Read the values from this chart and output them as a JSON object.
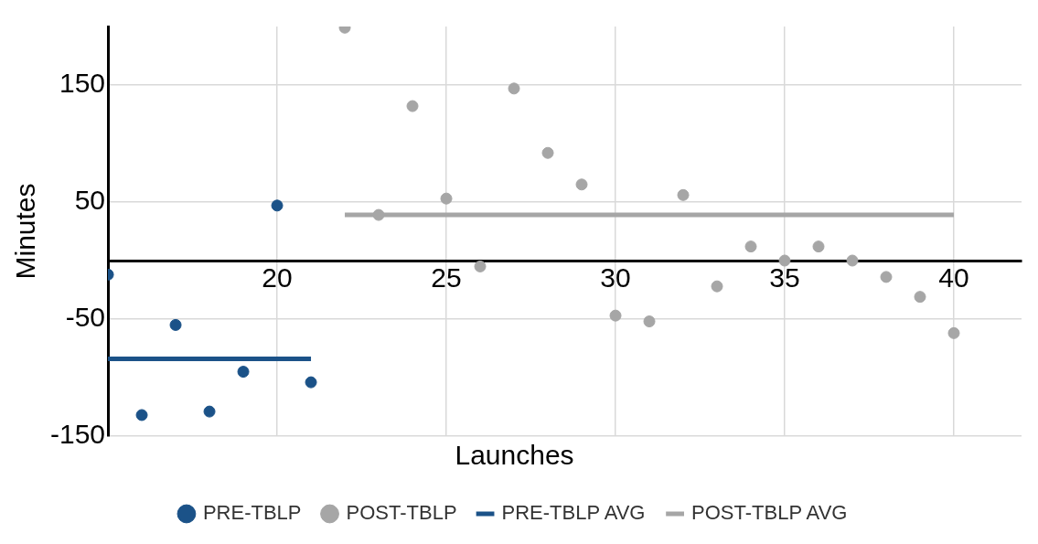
{
  "chart_data": {
    "type": "scatter",
    "xlabel": "Launches",
    "ylabel": "Minutes",
    "xlim": [
      15,
      42
    ],
    "xticks": [
      20,
      25,
      30,
      35,
      40
    ],
    "ylim": [
      -150,
      200
    ],
    "yticks": [
      -150,
      -50,
      50,
      150
    ],
    "grid": true,
    "legend": "bottom",
    "series": [
      {
        "name": "PRE-TBLP",
        "color": "#1b5288",
        "marker": "circle",
        "x": [
          15,
          16,
          17,
          18,
          19,
          20,
          21
        ],
        "values": [
          -12,
          -132,
          -55,
          -129,
          -95,
          47,
          -104
        ]
      },
      {
        "name": "POST-TBLP",
        "color": "#a6a6a6",
        "marker": "circle",
        "x": [
          22,
          23,
          24,
          25,
          26,
          27,
          28,
          29,
          30,
          31,
          32,
          33,
          34,
          35,
          36,
          37,
          38,
          39,
          40
        ],
        "values": [
          199,
          39,
          132,
          53,
          -5,
          147,
          92,
          65,
          -47,
          -52,
          56,
          -22,
          12,
          0,
          12,
          0,
          -14,
          -31,
          -62
        ]
      },
      {
        "name": "PRE-TBLP AVG",
        "type": "line",
        "color": "#1b5288",
        "marker": "none",
        "x": [
          15,
          21
        ],
        "values": [
          -84,
          -84
        ]
      },
      {
        "name": "POST-TBLP AVG",
        "type": "line",
        "color": "#a6a6a6",
        "marker": "none",
        "x": [
          22,
          40
        ],
        "values": [
          39,
          39
        ]
      }
    ]
  }
}
